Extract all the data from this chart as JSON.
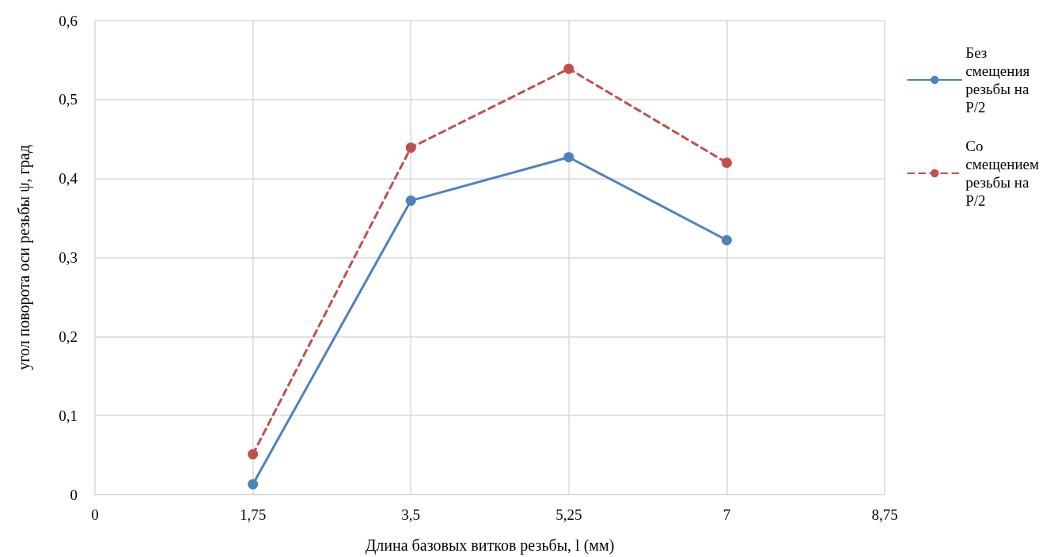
{
  "chart_data": {
    "type": "line",
    "xlabel": "Длина базовых витков резьбы, l (мм)",
    "ylabel": "угол поворота оси резьбы ψ, град",
    "x": [
      1.75,
      3.5,
      5.25,
      7
    ],
    "series": [
      {
        "name": "Без смещения резьбы на P/2",
        "color": "#4f81bd",
        "line_style": "solid",
        "values": [
          0.013,
          0.372,
          0.427,
          0.322
        ]
      },
      {
        "name": "Со смещением резьбы на P/2",
        "color": "#c0504d",
        "line_style": "dashed",
        "values": [
          0.051,
          0.439,
          0.539,
          0.42
        ]
      }
    ],
    "xlim": [
      0,
      8.75
    ],
    "xticks": [
      0,
      {
        "value": 1.75,
        "label": "1,75"
      },
      {
        "value": 3.5,
        "label": "3,5"
      },
      {
        "value": 5.25,
        "label": "5,25"
      },
      7,
      {
        "value": 8.75,
        "label": "8,75"
      }
    ],
    "ylim": [
      0,
      0.6
    ],
    "yticks": [
      0,
      {
        "value": 0.1,
        "label": "0,1"
      },
      {
        "value": 0.2,
        "label": "0,2"
      },
      {
        "value": 0.3,
        "label": "0,3"
      },
      {
        "value": 0.4,
        "label": "0,4"
      },
      {
        "value": 0.5,
        "label": "0,5"
      },
      {
        "value": 0.6,
        "label": "0,6"
      }
    ],
    "grid": true,
    "legend": "right",
    "marker": "circle"
  }
}
